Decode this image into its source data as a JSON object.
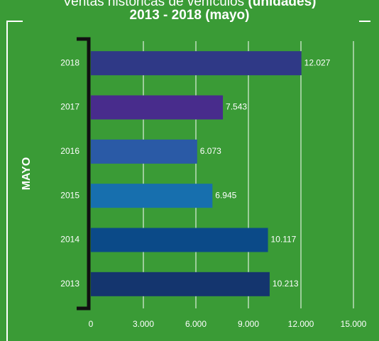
{
  "chart_data": {
    "type": "bar",
    "orientation": "horizontal",
    "title": "Ventas históricas de vehículos",
    "title_emphasis": "(unidades)",
    "subtitle": "2013 - 2018 (mayo)",
    "y_label": "MAYO",
    "categories": [
      "2013",
      "2014",
      "2015",
      "2016",
      "2017",
      "2018"
    ],
    "values": [
      10213,
      10117,
      6945,
      6073,
      7543,
      12027
    ],
    "value_labels": [
      "10.213",
      "10.117",
      "6.945",
      "6.073",
      "7.543",
      "12.027"
    ],
    "colors": [
      "#14356e",
      "#0b4a88",
      "#176fae",
      "#2a5aa6",
      "#482c8c",
      "#2f3986"
    ],
    "xlim": [
      0,
      15000
    ],
    "xticks": [
      0,
      {
        "value": 3000,
        "label": "3.000"
      },
      {
        "value": 6000,
        "label": "6.000"
      },
      {
        "value": 9000,
        "label": "9.000"
      },
      {
        "value": 12000,
        "label": "12.000"
      },
      {
        "value": 15000,
        "label": "15.000"
      }
    ],
    "grid": true
  }
}
